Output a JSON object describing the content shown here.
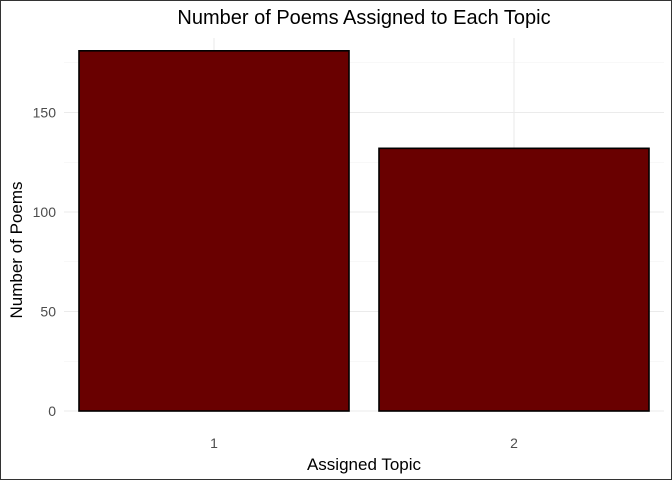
{
  "chart_data": {
    "type": "bar",
    "title": "Number of Poems Assigned to Each Topic",
    "xlabel": "Assigned Topic",
    "ylabel": "Number of Poems",
    "categories": [
      "1",
      "2"
    ],
    "values": [
      181,
      132
    ],
    "ylim": [
      0,
      181
    ],
    "yticks": [
      0,
      50,
      100,
      150
    ],
    "grid": true,
    "legend": "none",
    "colors": {
      "bar_fill": "#690000",
      "bar_stroke": "#000000"
    }
  }
}
